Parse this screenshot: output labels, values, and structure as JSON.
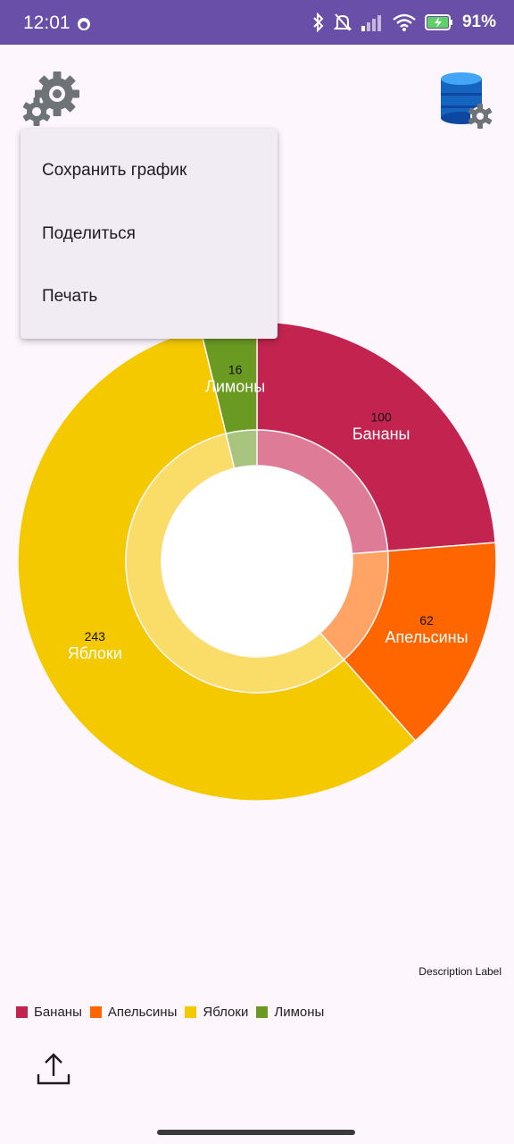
{
  "status_bar": {
    "time": "12:01",
    "battery": "91%",
    "icons": [
      "face-icon",
      "bluetooth-icon",
      "bell-off-icon",
      "signal-icon",
      "wifi-icon",
      "battery-charging-icon"
    ]
  },
  "toolbar": {
    "left_icon": "gears-icon",
    "right_icon": "database-settings-icon"
  },
  "menu": {
    "items": [
      {
        "label": "Сохранить график"
      },
      {
        "label": "Поделиться"
      },
      {
        "label": "Печать"
      }
    ]
  },
  "chart_data": {
    "type": "pie",
    "variant": "donut",
    "categories": [
      "Бананы",
      "Апельсины",
      "Яблоки",
      "Лимоны"
    ],
    "values": [
      100,
      62,
      243,
      16
    ],
    "colors": [
      "#C2244F",
      "#FF6600",
      "#F5C900",
      "#6B9A23"
    ],
    "inner_colors": [
      "#DE7B96",
      "#FFA464",
      "#FADD68",
      "#A9C47F"
    ],
    "legend_position": "bottom-left",
    "description": "Description Label"
  },
  "bottom": {
    "share_icon": "share-upload-icon"
  }
}
